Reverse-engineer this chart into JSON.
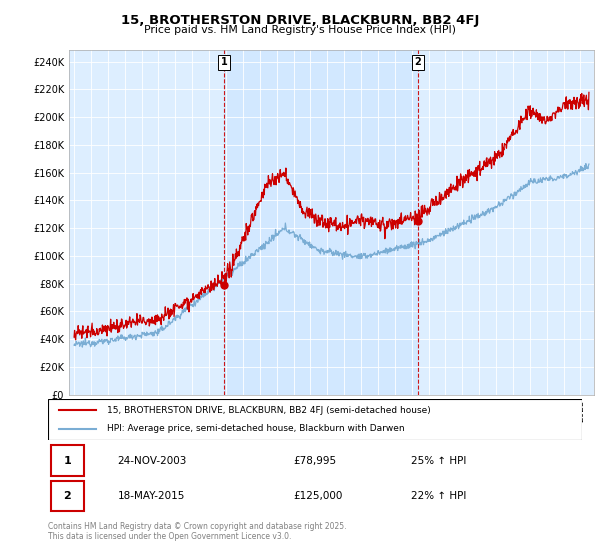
{
  "title": "15, BROTHERSTON DRIVE, BLACKBURN, BB2 4FJ",
  "subtitle": "Price paid vs. HM Land Registry's House Price Index (HPI)",
  "ylim": [
    0,
    248000
  ],
  "xlim_start": 1994.7,
  "xlim_end": 2025.8,
  "legend_line1": "15, BROTHERSTON DRIVE, BLACKBURN, BB2 4FJ (semi-detached house)",
  "legend_line2": "HPI: Average price, semi-detached house, Blackburn with Darwen",
  "annotation1_label": "1",
  "annotation1_date": "24-NOV-2003",
  "annotation1_price": "£78,995",
  "annotation1_hpi": "25% ↑ HPI",
  "annotation2_label": "2",
  "annotation2_date": "18-MAY-2015",
  "annotation2_price": "£125,000",
  "annotation2_hpi": "22% ↑ HPI",
  "footer": "Contains HM Land Registry data © Crown copyright and database right 2025.\nThis data is licensed under the Open Government Licence v3.0.",
  "red_color": "#cc0000",
  "blue_color": "#7aadd4",
  "bg_color": "#ddeeff",
  "bg_highlight_color": "#cce5ff",
  "vline1_x": 2003.9,
  "vline2_x": 2015.38,
  "dot1_x": 2003.9,
  "dot1_y": 78995,
  "dot2_x": 2015.38,
  "dot2_y": 125000
}
